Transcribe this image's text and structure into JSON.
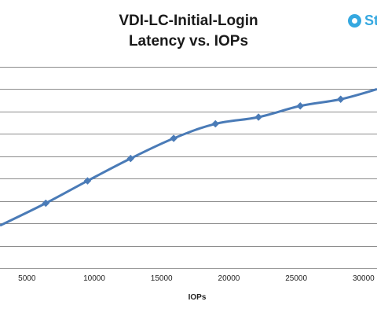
{
  "chart_data": {
    "type": "line",
    "title": [
      "VDI-LC-Initial-Login",
      "Latency vs. IOPs"
    ],
    "xlabel": "IOPs",
    "ylabel": "",
    "x_ticks": [
      5000,
      10000,
      15000,
      20000,
      25000,
      30000
    ],
    "xlim": [
      3000,
      31000
    ],
    "ylim": [
      0,
      9
    ],
    "grid": true,
    "series": [
      {
        "color": "#4a7bb7",
        "marker": "diamond",
        "points": [
          {
            "x": 3000,
            "y": 1.9
          },
          {
            "x": 6400,
            "y": 2.9
          },
          {
            "x": 9500,
            "y": 3.9
          },
          {
            "x": 12700,
            "y": 4.9
          },
          {
            "x": 15900,
            "y": 5.8
          },
          {
            "x": 19000,
            "y": 6.45
          },
          {
            "x": 22200,
            "y": 6.75
          },
          {
            "x": 25300,
            "y": 7.25
          },
          {
            "x": 28300,
            "y": 7.55
          },
          {
            "x": 31000,
            "y": 8.0
          }
        ]
      }
    ]
  },
  "logo": {
    "text": "St",
    "color": "#35a8e0"
  }
}
